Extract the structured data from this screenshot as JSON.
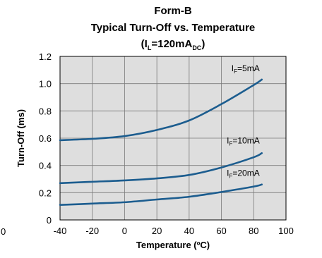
{
  "chart_data": {
    "type": "line",
    "title_lines": [
      {
        "text": "Form-B"
      },
      {
        "text": "Typical Turn-Off vs. Temperature"
      },
      {
        "parts": [
          {
            "text": "(I",
            "style": "normal"
          },
          {
            "text": "L",
            "style": "sub"
          },
          {
            "text": "=120mA",
            "style": "normal"
          },
          {
            "text": "DC",
            "style": "sub"
          },
          {
            "text": ")",
            "style": "normal"
          }
        ]
      }
    ],
    "xlabel": "Temperature (ºC)",
    "ylabel": "Turn-Off (ms)",
    "xlim": [
      -40,
      100
    ],
    "ylim": [
      0,
      1.2
    ],
    "xticks": [
      -40,
      -20,
      0,
      20,
      40,
      60,
      80,
      100
    ],
    "xtick_labels": [
      "-40",
      "-20",
      "0",
      "20",
      "40",
      "60",
      "80",
      "100"
    ],
    "yticks": [
      0,
      0.2,
      0.4,
      0.6,
      0.8,
      1.0,
      1.2
    ],
    "ytick_labels": [
      "0",
      "0.2",
      "0.4",
      "0.6",
      "0.8",
      "1.0",
      "1.2"
    ],
    "grid": true,
    "stray_label": "0",
    "series": [
      {
        "label_main": "I",
        "label_sub": "F",
        "label_rest": "=5mA",
        "x": [
          -40,
          -20,
          0,
          20,
          40,
          60,
          80,
          85
        ],
        "y": [
          0.585,
          0.595,
          0.615,
          0.66,
          0.73,
          0.85,
          0.99,
          1.03
        ]
      },
      {
        "label_main": "I",
        "label_sub": "F",
        "label_rest": "=10mA",
        "x": [
          -40,
          -20,
          0,
          20,
          40,
          60,
          80,
          85
        ],
        "y": [
          0.27,
          0.28,
          0.29,
          0.305,
          0.33,
          0.385,
          0.46,
          0.49
        ]
      },
      {
        "label_main": "I",
        "label_sub": "F",
        "label_rest": "=20mA",
        "x": [
          -40,
          -20,
          0,
          20,
          40,
          60,
          80,
          85
        ],
        "y": [
          0.11,
          0.12,
          0.13,
          0.15,
          0.17,
          0.205,
          0.245,
          0.26
        ]
      }
    ],
    "colors": {
      "plot_background": "#dedede",
      "grid": "#7a7a7a",
      "frame": "#000000",
      "line": "#1c5d8f"
    }
  }
}
